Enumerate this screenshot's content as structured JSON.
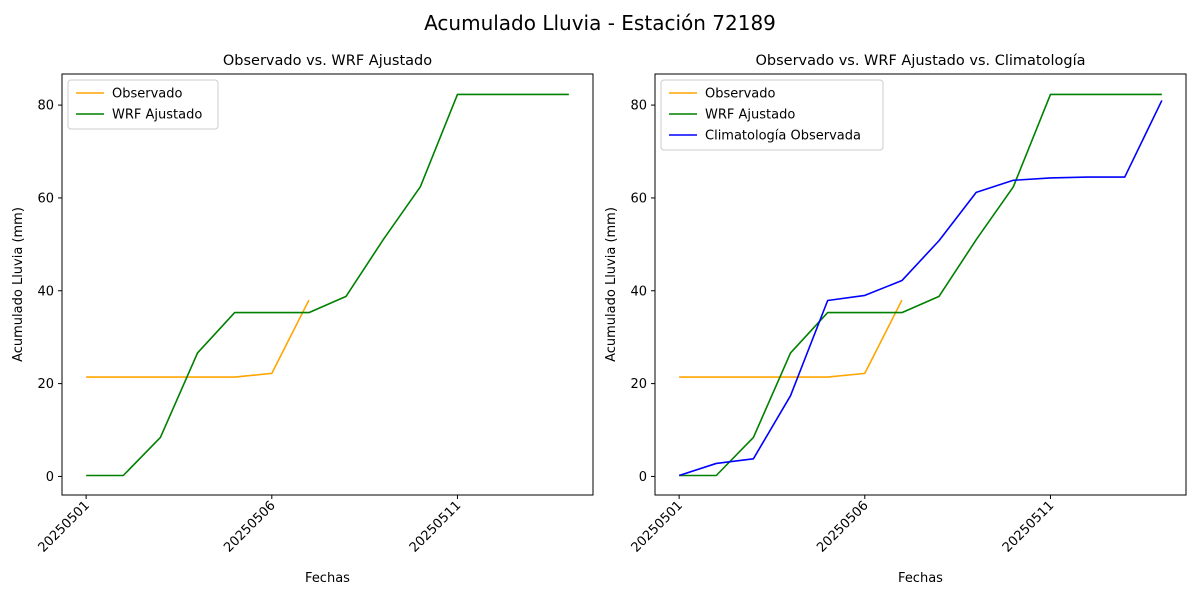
{
  "suptitle": "Acumulado Lluvia - Estación 72189",
  "colors": {
    "observado": "#ffa500",
    "wrf": "#008000",
    "climatologia": "#0000ff"
  },
  "chart_data": [
    {
      "type": "line",
      "title": "Observado vs. WRF Ajustado",
      "xlabel": "Fechas",
      "ylabel": "Acumulado Lluvia (mm)",
      "x": [
        "20250501",
        "20250502",
        "20250503",
        "20250504",
        "20250505",
        "20250506",
        "20250507",
        "20250508",
        "20250509",
        "20250510",
        "20250511",
        "20250512",
        "20250513",
        "20250514"
      ],
      "xticks": [
        "20250501",
        "20250506",
        "20250511"
      ],
      "yticks": [
        0,
        20,
        40,
        60,
        80
      ],
      "ylim": [
        -4,
        86.7
      ],
      "legend_position": "upper-left",
      "series": [
        {
          "name": "Observado",
          "color": "#ffa500",
          "values": [
            21.4,
            21.4,
            21.4,
            21.4,
            21.4,
            22.2,
            38.0,
            null,
            null,
            null,
            null,
            null,
            null,
            null
          ]
        },
        {
          "name": "WRF Ajustado",
          "color": "#008000",
          "values": [
            0.2,
            0.2,
            8.4,
            26.6,
            35.3,
            35.3,
            35.3,
            38.8,
            51.0,
            62.4,
            82.3,
            82.3,
            82.3,
            82.3
          ]
        }
      ]
    },
    {
      "type": "line",
      "title": "Observado vs. WRF Ajustado vs. Climatología",
      "xlabel": "Fechas",
      "ylabel": "Acumulado Lluvia (mm)",
      "x": [
        "20250501",
        "20250502",
        "20250503",
        "20250504",
        "20250505",
        "20250506",
        "20250507",
        "20250508",
        "20250509",
        "20250510",
        "20250511",
        "20250512",
        "20250513",
        "20250514"
      ],
      "xticks": [
        "20250501",
        "20250506",
        "20250511"
      ],
      "yticks": [
        0,
        20,
        40,
        60,
        80
      ],
      "ylim": [
        -4,
        86.7
      ],
      "legend_position": "upper-left",
      "series": [
        {
          "name": "Observado",
          "color": "#ffa500",
          "values": [
            21.4,
            21.4,
            21.4,
            21.4,
            21.4,
            22.2,
            38.0,
            null,
            null,
            null,
            null,
            null,
            null,
            null
          ]
        },
        {
          "name": "WRF Ajustado",
          "color": "#008000",
          "values": [
            0.2,
            0.2,
            8.4,
            26.6,
            35.3,
            35.3,
            35.3,
            38.8,
            51.0,
            62.4,
            82.3,
            82.3,
            82.3,
            82.3
          ]
        },
        {
          "name": "Climatología Observada",
          "color": "#0000ff",
          "values": [
            0.2,
            2.8,
            3.8,
            17.4,
            37.9,
            39.0,
            42.2,
            50.8,
            61.2,
            63.8,
            64.3,
            64.5,
            64.5,
            81.0
          ]
        }
      ]
    }
  ]
}
